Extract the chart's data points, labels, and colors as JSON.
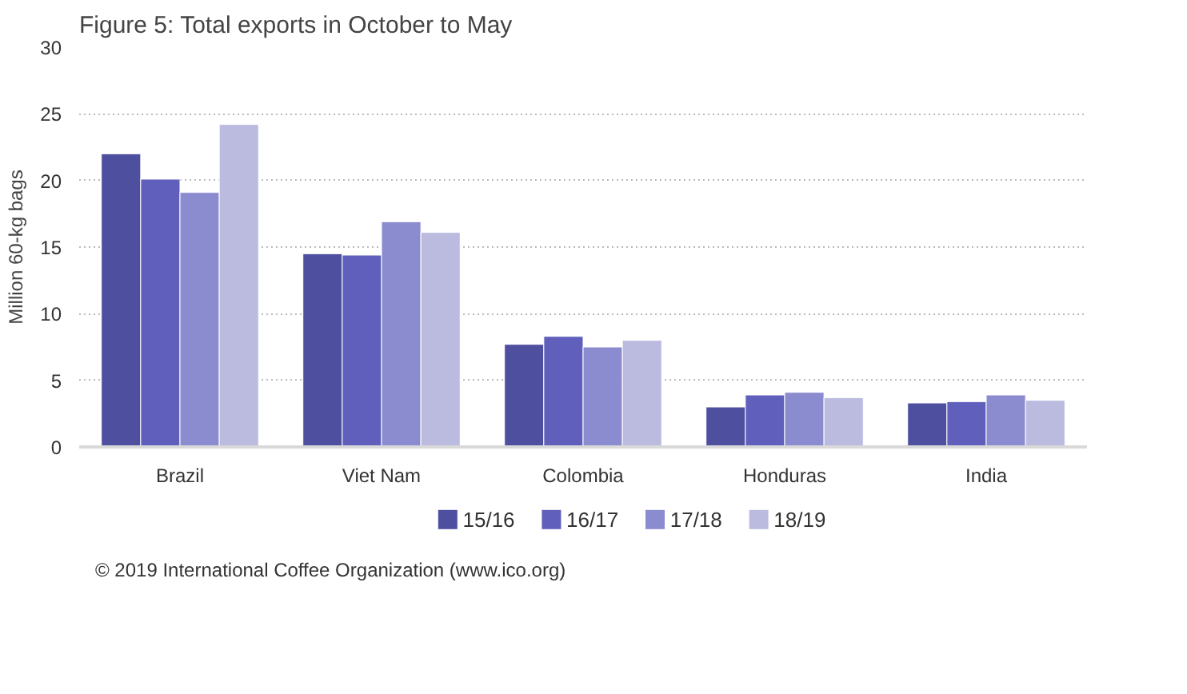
{
  "chart_data": {
    "type": "bar",
    "title": "Figure 5: Total exports in October to May",
    "ylabel": "Million 60-kg bags",
    "categories": [
      "Brazil",
      "Viet Nam",
      "Colombia",
      "Honduras",
      "India"
    ],
    "series": [
      {
        "name": "15/16",
        "color": "#4f4f9f",
        "values": [
          22.0,
          14.5,
          7.7,
          3.0,
          3.3
        ]
      },
      {
        "name": "16/17",
        "color": "#6060bc",
        "values": [
          20.1,
          14.4,
          8.3,
          3.9,
          3.4
        ]
      },
      {
        "name": "17/18",
        "color": "#8b8bd0",
        "values": [
          19.1,
          16.9,
          7.5,
          4.1,
          3.9
        ]
      },
      {
        "name": "18/19",
        "color": "#bbbbe0",
        "values": [
          24.2,
          16.1,
          8.0,
          3.7,
          3.5
        ]
      }
    ],
    "ylim": [
      0,
      30
    ],
    "yticks": [
      0,
      5,
      10,
      15,
      20,
      25,
      30
    ],
    "grid": "y",
    "legend": "bottom",
    "annotations": [
      "© 2019 International Coffee Organization (www.ico.org)"
    ]
  }
}
